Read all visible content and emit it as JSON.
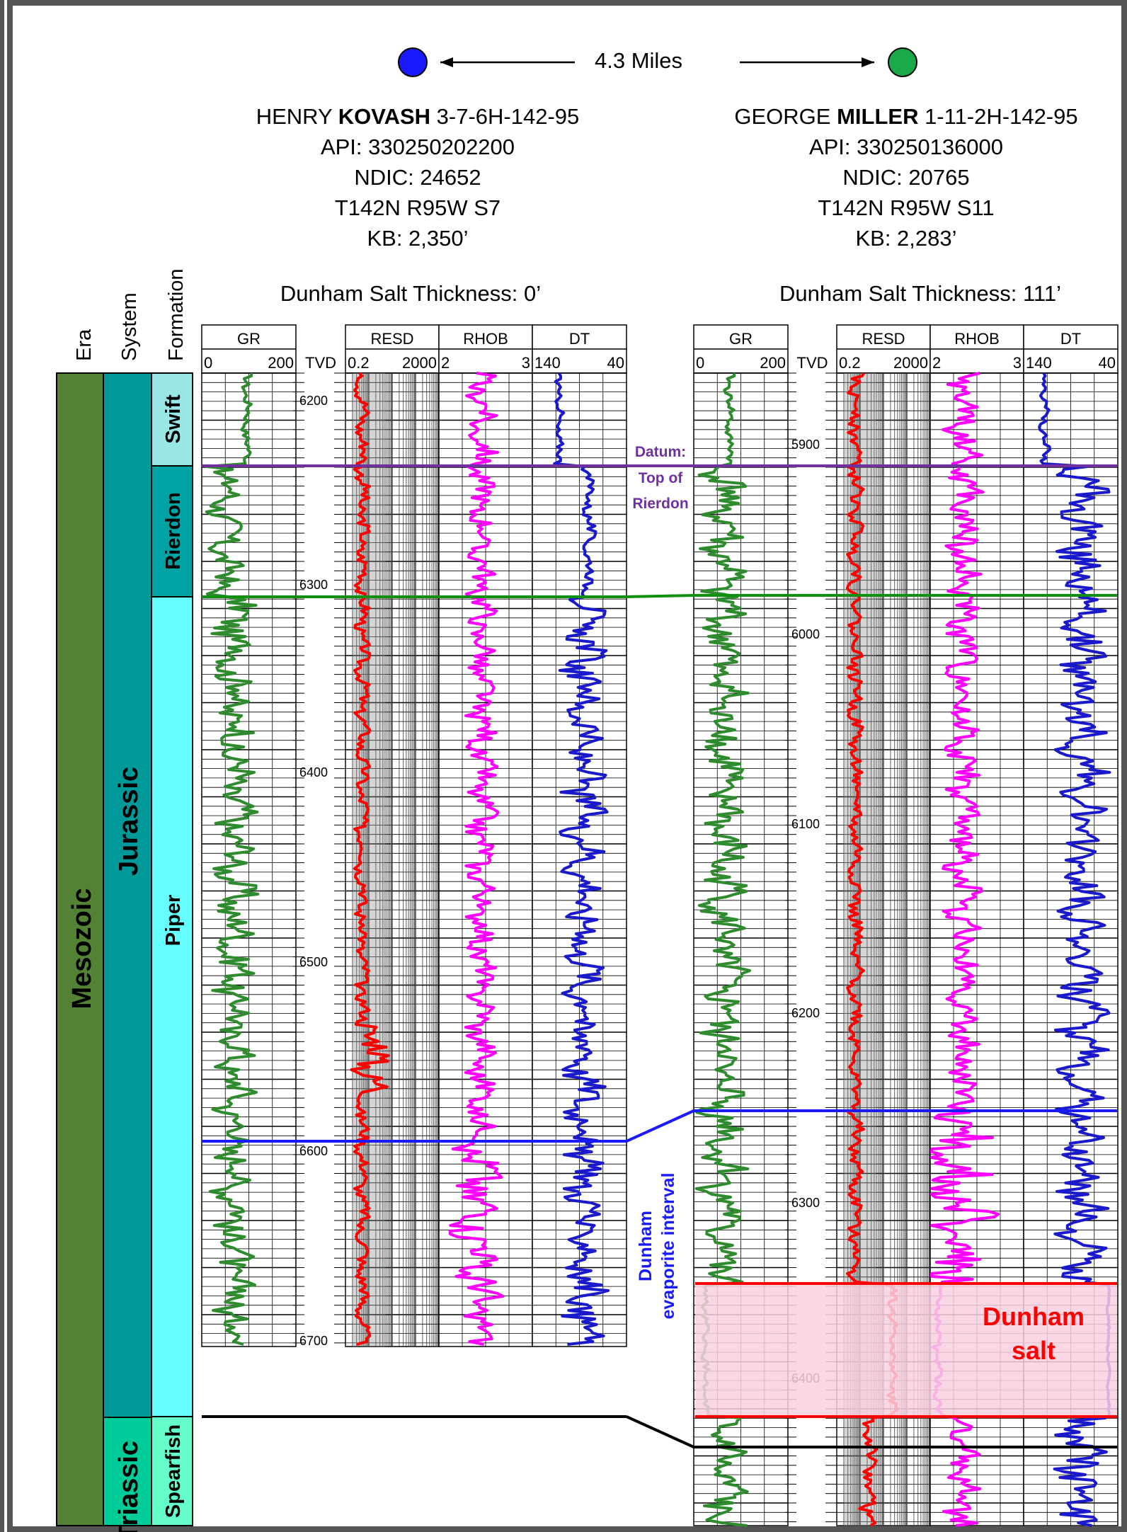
{
  "distance": "4.3 Miles",
  "wells": [
    {
      "name_pre": "HENRY ",
      "name_bold": "KOVASH",
      "name_post": " 3-7-6H-142-95",
      "api": "API:  330250202200",
      "ndic": "NDIC: 24652",
      "loc": "T142N R95W S7",
      "kb": "KB: 2,350’",
      "salt": "Dunham Salt Thickness:  0’",
      "dot_color": "#1a1aff",
      "depth_ticks": [
        "6200",
        "6300",
        "6400",
        "6500",
        "6600",
        "6700"
      ],
      "depth_values": [
        6200,
        6300,
        6400,
        6500,
        6600,
        6700
      ]
    },
    {
      "name_pre": "GEORGE ",
      "name_bold": "MILLER",
      "name_post": " 1-11-2H-142-95",
      "api": "API:  330250136000",
      "ndic": "NDIC: 20765",
      "loc": "T142N R95W S11",
      "kb": "KB: 2,283’",
      "salt": "Dunham Salt Thickness:  111’",
      "dot_color": "#1aaa4a",
      "depth_ticks": [
        "5900",
        "6000",
        "6100",
        "6200",
        "6300",
        "6400"
      ],
      "depth_values": [
        5900,
        6000,
        6100,
        6200,
        6300,
        6400
      ]
    }
  ],
  "track_headers": {
    "gr": "GR",
    "gr_min": "0",
    "gr_max": "200",
    "tvd": "TVD",
    "resd": "RESD",
    "resd_min": "0.2",
    "resd_max": "2000",
    "rhob": "RHOB",
    "rhob_min": "2",
    "rhob_max": "3",
    "dt": "DT",
    "dt_min": "140",
    "dt_max": "40"
  },
  "strat_headers": {
    "era": "Era",
    "system": "System",
    "formation": "Formation"
  },
  "strat": {
    "era": "Mesozoic",
    "systems": [
      "Jurassic",
      "Triassic"
    ],
    "formations": [
      "Swift",
      "Rierdon",
      "Piper",
      "Spearfish"
    ]
  },
  "annotations": {
    "datum": [
      "Datum:",
      "Top of",
      "Rierdon"
    ],
    "evaporite": [
      "Dunham",
      "evaporite interval"
    ],
    "salt": [
      "Dunham",
      "salt"
    ]
  },
  "colors": {
    "era": "#548235",
    "jurassic": "#009999",
    "triassic": "#00cc99",
    "swift": "#99e6e6",
    "rierdon": "#00a3a3",
    "piper": "#66ffff",
    "spearfish": "#66ffcc",
    "gr": "#2e8b2e",
    "resd": "#ff0000",
    "rhob": "#ff00ff",
    "dt": "#1a1acc",
    "datum_line": "#7030a0",
    "rierdon_line": "#109010",
    "evaporite_line": "#1a1aff",
    "spearfish_line": "#000000",
    "salt_fill": "#f8d0e0",
    "salt_line": "#ff0000"
  }
}
